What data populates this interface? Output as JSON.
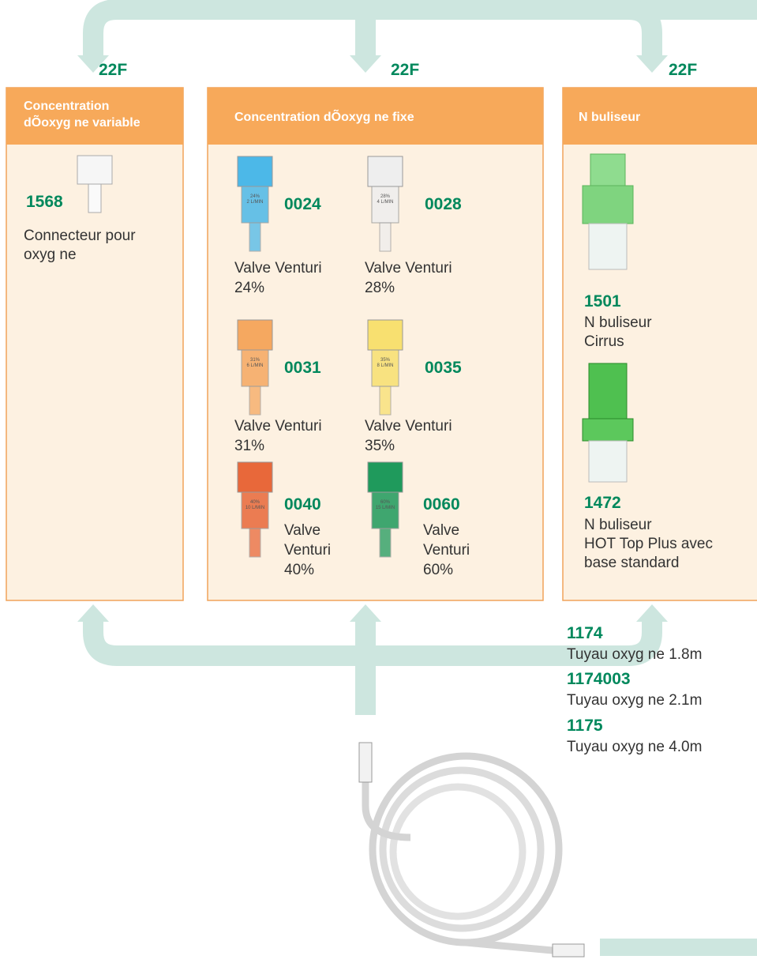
{
  "flow_labels": [
    "22F",
    "22F",
    "22F"
  ],
  "panels": [
    {
      "title": [
        "Concentration",
        "dÕoxyg ne variable"
      ],
      "items": [
        {
          "code": "1568",
          "desc": [
            "Connecteur pour",
            "oxyg ne"
          ]
        }
      ]
    },
    {
      "title": [
        "Concentration dÕoxyg ne fixe"
      ],
      "items": [
        {
          "code": "0024",
          "tag": [
            "24%",
            "2 L/MIN"
          ],
          "desc": [
            "Valve Venturi",
            "24%"
          ]
        },
        {
          "code": "0028",
          "tag": [
            "28%",
            "4 L/MIN"
          ],
          "desc": [
            "Valve Venturi",
            "28%"
          ]
        },
        {
          "code": "0031",
          "tag": [
            "31%",
            "6 L/MIN"
          ],
          "desc": [
            "Valve Venturi",
            "31%"
          ]
        },
        {
          "code": "0035",
          "tag": [
            "35%",
            "8 L/MIN"
          ],
          "desc": [
            "Valve Venturi",
            "35%"
          ]
        },
        {
          "code": "0040",
          "tag": [
            "40%",
            "10 L/MIN"
          ],
          "desc": [
            "Valve",
            "Venturi",
            "40%"
          ]
        },
        {
          "code": "0060",
          "tag": [
            "60%",
            "15 L/MIN"
          ],
          "desc": [
            "Valve",
            "Venturi",
            "60%"
          ]
        }
      ]
    },
    {
      "title": [
        "N buliseur"
      ],
      "items": [
        {
          "code": "1501",
          "desc": [
            "N buliseur",
            "Cirrus"
          ]
        },
        {
          "code": "1472",
          "desc": [
            "N buliseur",
            "HOT Top Plus avec",
            "base standard"
          ]
        }
      ]
    }
  ],
  "tubing": [
    {
      "code": "1174",
      "desc": "Tuyau oxyg ne 1.8m"
    },
    {
      "code": "1174003",
      "desc": "Tuyau oxyg ne 2.1m"
    },
    {
      "code": "1175",
      "desc": "Tuyau oxyg ne 4.0m"
    }
  ]
}
